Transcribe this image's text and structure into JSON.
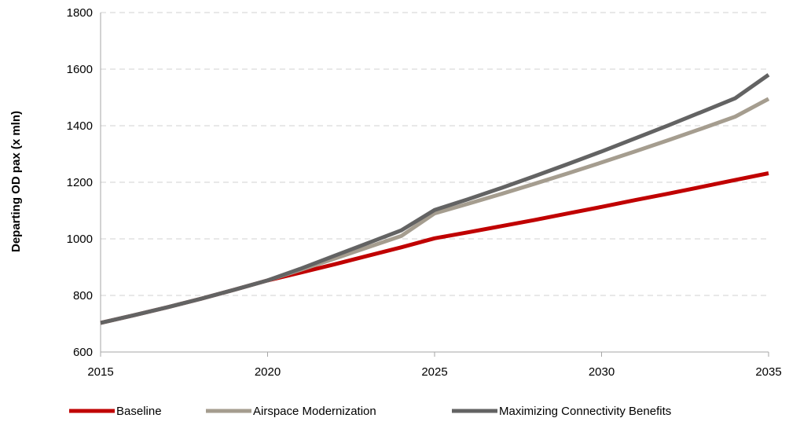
{
  "chart_data": {
    "type": "line",
    "title": "",
    "xlabel": "",
    "ylabel": "Departing OD pax (x mln)",
    "x": [
      2015,
      2016,
      2017,
      2018,
      2019,
      2020,
      2021,
      2022,
      2023,
      2024,
      2025,
      2026,
      2027,
      2028,
      2029,
      2030,
      2031,
      2032,
      2033,
      2034,
      2035
    ],
    "xticks": [
      2015,
      2020,
      2025,
      2030,
      2035
    ],
    "yticks": [
      600,
      800,
      1000,
      1200,
      1400,
      1600,
      1800
    ],
    "xlim": [
      2015,
      2035
    ],
    "ylim": [
      600,
      1800
    ],
    "grid": "horizontal dashed",
    "legend_position": "bottom",
    "series": [
      {
        "name": "Baseline",
        "color": "#c00000",
        "values": [
          703,
          730,
          758,
          788,
          820,
          853,
          881,
          910,
          940,
          970,
          1002,
          1023,
          1045,
          1067,
          1090,
          1113,
          1137,
          1160,
          1184,
          1208,
          1232
        ]
      },
      {
        "name": "Airspace Modernization",
        "color": "#a59d8f",
        "values": [
          703,
          730,
          758,
          788,
          820,
          853,
          891,
          930,
          970,
          1010,
          1090,
          1124,
          1159,
          1195,
          1232,
          1270,
          1309,
          1349,
          1390,
          1432,
          1495
        ]
      },
      {
        "name": "Maximizing Connectivity Benefits",
        "color": "#636363",
        "values": [
          703,
          730,
          758,
          788,
          820,
          853,
          895,
          940,
          985,
          1030,
          1102,
          1140,
          1180,
          1222,
          1265,
          1309,
          1355,
          1401,
          1449,
          1497,
          1580
        ]
      }
    ]
  }
}
